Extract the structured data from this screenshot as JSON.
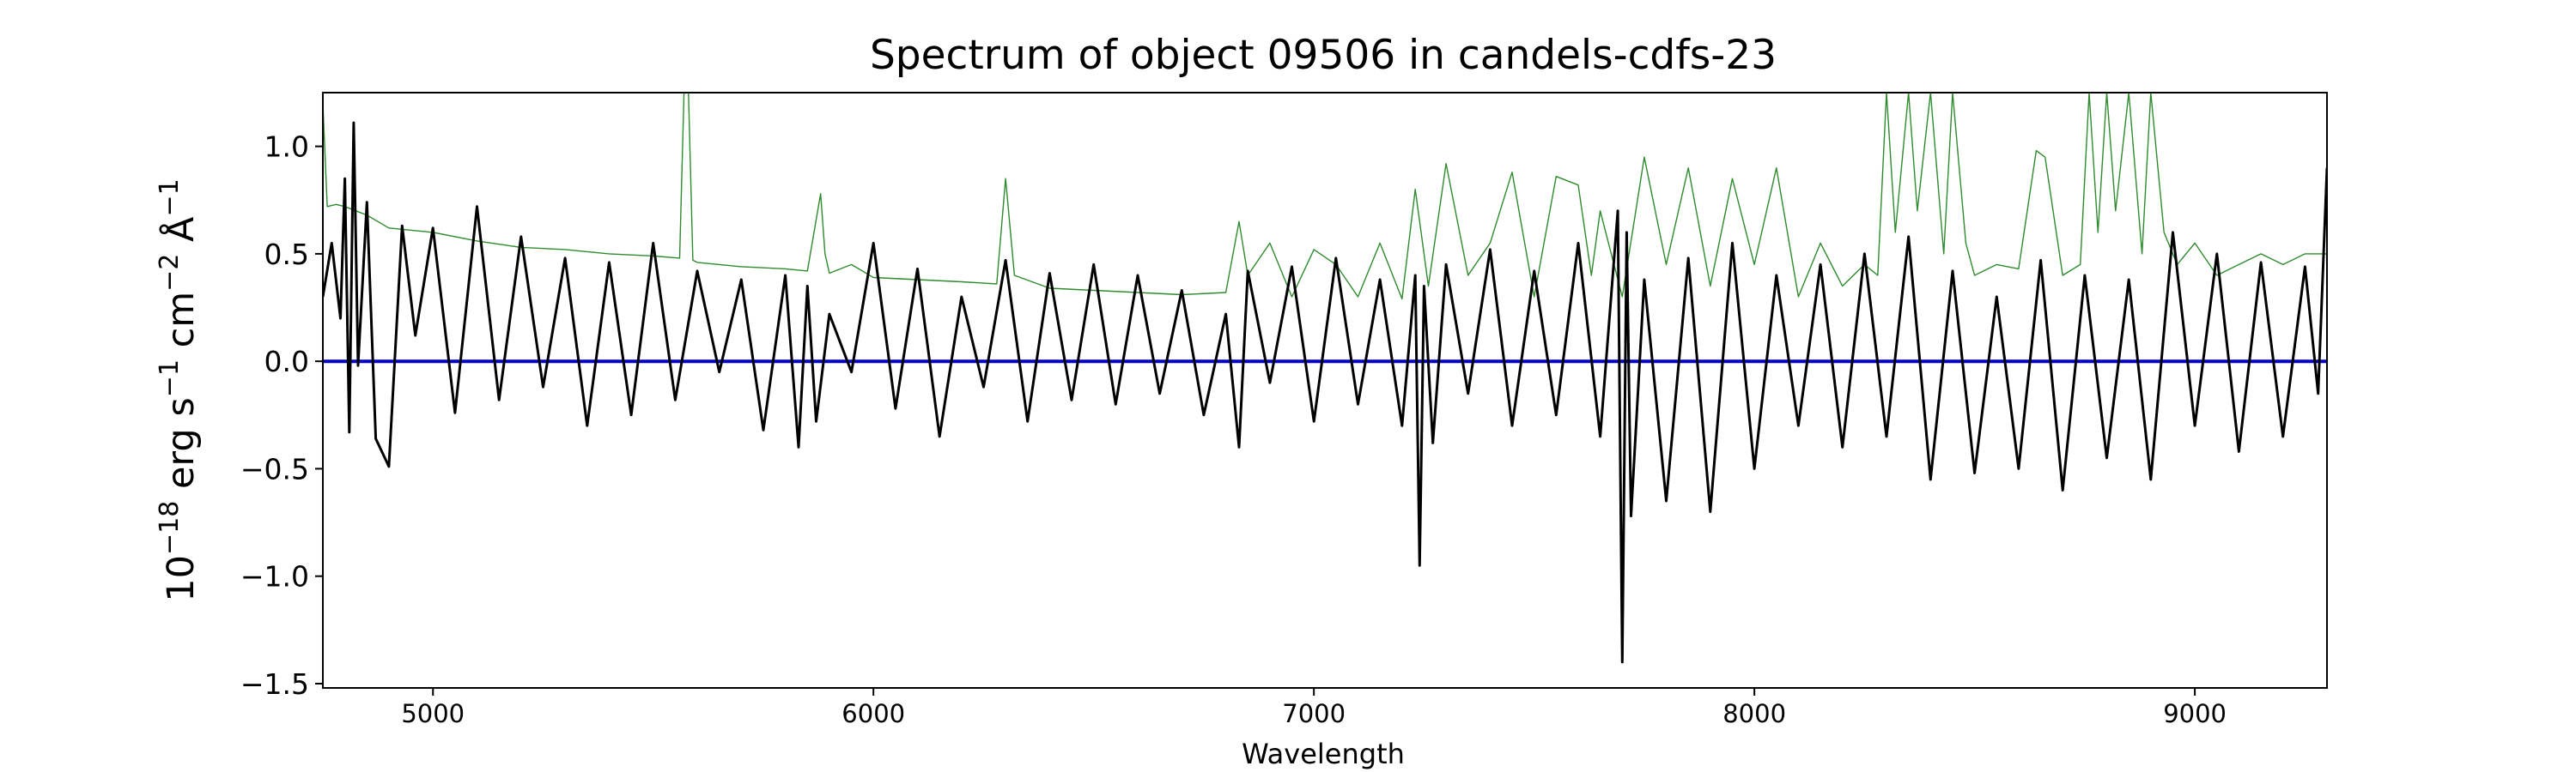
{
  "chart_data": {
    "type": "line",
    "title": "Spectrum of object 09506 in candels-cdfs-23",
    "xlabel": "Wavelength",
    "ylabel": {
      "base": "10",
      "exp1": "−18",
      "unit1": " erg s",
      "exp2": "−1",
      "unit2": " cm",
      "exp3": "−2",
      "unit3": " Å",
      "exp4": "−1"
    },
    "xlim": [
      4750,
      9300
    ],
    "ylim": [
      -1.52,
      1.25
    ],
    "xticks": [
      5000,
      6000,
      7000,
      8000,
      9000
    ],
    "xtick_labels": [
      "5000",
      "6000",
      "7000",
      "8000",
      "9000"
    ],
    "yticks": [
      1.0,
      0.5,
      0.0,
      -0.5,
      -1.0,
      -1.5
    ],
    "ytick_labels": [
      "1.0",
      "0.5",
      "0.0",
      "−0.5",
      "−1.0",
      "−1.5"
    ],
    "grid": false,
    "series": [
      {
        "role": "flux",
        "color": "#000000",
        "x": [
          4750,
          4770,
          4790,
          4800,
          4810,
          4820,
          4830,
          4850,
          4870,
          4900,
          4930,
          4960,
          5000,
          5050,
          5100,
          5150,
          5200,
          5250,
          5300,
          5350,
          5400,
          5450,
          5500,
          5550,
          5600,
          5650,
          5700,
          5750,
          5800,
          5830,
          5850,
          5870,
          5900,
          5950,
          6000,
          6050,
          6100,
          6150,
          6200,
          6250,
          6300,
          6350,
          6400,
          6450,
          6500,
          6550,
          6600,
          6650,
          6700,
          6750,
          6800,
          6830,
          6850,
          6900,
          6950,
          7000,
          7050,
          7100,
          7150,
          7200,
          7230,
          7240,
          7250,
          7270,
          7300,
          7350,
          7400,
          7450,
          7500,
          7550,
          7600,
          7650,
          7690,
          7700,
          7710,
          7720,
          7750,
          7800,
          7850,
          7900,
          7950,
          8000,
          8050,
          8100,
          8150,
          8200,
          8250,
          8300,
          8350,
          8400,
          8450,
          8500,
          8550,
          8600,
          8650,
          8700,
          8750,
          8800,
          8850,
          8900,
          8950,
          9000,
          9050,
          9100,
          9150,
          9200,
          9250,
          9280,
          9300
        ],
        "y": [
          0.3,
          0.55,
          0.2,
          0.85,
          -0.33,
          1.11,
          -0.02,
          0.74,
          -0.36,
          -0.49,
          0.63,
          0.12,
          0.62,
          -0.24,
          0.72,
          -0.18,
          0.58,
          -0.12,
          0.48,
          -0.3,
          0.46,
          -0.25,
          0.55,
          -0.18,
          0.42,
          -0.05,
          0.38,
          -0.32,
          0.4,
          -0.4,
          0.35,
          -0.28,
          0.22,
          -0.05,
          0.55,
          -0.22,
          0.43,
          -0.35,
          0.3,
          -0.12,
          0.47,
          -0.28,
          0.41,
          -0.18,
          0.45,
          -0.2,
          0.4,
          -0.15,
          0.33,
          -0.25,
          0.22,
          -0.4,
          0.42,
          -0.1,
          0.44,
          -0.28,
          0.48,
          -0.2,
          0.38,
          -0.3,
          0.4,
          -0.95,
          0.35,
          -0.38,
          0.45,
          -0.15,
          0.52,
          -0.3,
          0.42,
          -0.25,
          0.55,
          -0.35,
          0.7,
          -1.4,
          0.6,
          -0.72,
          0.38,
          -0.65,
          0.48,
          -0.7,
          0.55,
          -0.5,
          0.4,
          -0.3,
          0.45,
          -0.4,
          0.5,
          -0.35,
          0.58,
          -0.55,
          0.42,
          -0.52,
          0.3,
          -0.5,
          0.47,
          -0.6,
          0.4,
          -0.45,
          0.38,
          -0.55,
          0.6,
          -0.3,
          0.5,
          -0.42,
          0.46,
          -0.35,
          0.44,
          -0.15,
          0.9
        ]
      },
      {
        "role": "noise",
        "color": "#2e8b2e",
        "x": [
          4750,
          4760,
          4780,
          4800,
          4850,
          4900,
          5000,
          5100,
          5200,
          5300,
          5400,
          5500,
          5560,
          5570,
          5580,
          5590,
          5600,
          5700,
          5800,
          5850,
          5880,
          5890,
          5900,
          5950,
          6000,
          6100,
          6200,
          6280,
          6300,
          6320,
          6400,
          6500,
          6600,
          6700,
          6800,
          6830,
          6850,
          6900,
          6950,
          7000,
          7050,
          7100,
          7150,
          7200,
          7230,
          7260,
          7300,
          7350,
          7400,
          7450,
          7500,
          7550,
          7600,
          7630,
          7650,
          7700,
          7750,
          7800,
          7850,
          7900,
          7950,
          8000,
          8050,
          8100,
          8150,
          8200,
          8250,
          8280,
          8300,
          8320,
          8350,
          8370,
          8400,
          8430,
          8450,
          8480,
          8500,
          8550,
          8600,
          8640,
          8660,
          8700,
          8740,
          8760,
          8780,
          8800,
          8820,
          8850,
          8880,
          8900,
          8930,
          8960,
          9000,
          9050,
          9100,
          9150,
          9200,
          9250,
          9300
        ],
        "y": [
          1.2,
          0.72,
          0.73,
          0.72,
          0.68,
          0.62,
          0.6,
          0.56,
          0.53,
          0.52,
          0.5,
          0.49,
          0.48,
          1.25,
          1.25,
          0.47,
          0.46,
          0.44,
          0.43,
          0.42,
          0.78,
          0.5,
          0.41,
          0.45,
          0.39,
          0.38,
          0.37,
          0.36,
          0.85,
          0.4,
          0.34,
          0.33,
          0.32,
          0.31,
          0.32,
          0.65,
          0.4,
          0.55,
          0.3,
          0.52,
          0.45,
          0.3,
          0.55,
          0.29,
          0.8,
          0.35,
          0.92,
          0.4,
          0.55,
          0.88,
          0.3,
          0.86,
          0.82,
          0.4,
          0.7,
          0.3,
          0.95,
          0.45,
          0.9,
          0.35,
          0.85,
          0.45,
          0.9,
          0.3,
          0.55,
          0.35,
          0.45,
          0.4,
          1.25,
          0.6,
          1.25,
          0.7,
          1.25,
          0.5,
          1.25,
          0.55,
          0.4,
          0.45,
          0.43,
          0.98,
          0.95,
          0.4,
          0.45,
          1.25,
          0.6,
          1.25,
          0.7,
          1.25,
          0.5,
          1.25,
          0.6,
          0.45,
          0.55,
          0.4,
          0.45,
          0.5,
          0.45,
          0.5,
          0.5
        ]
      },
      {
        "role": "zero",
        "color": "#0000c8",
        "x": [
          4750,
          9300
        ],
        "y": [
          0.0,
          0.0
        ]
      }
    ]
  }
}
